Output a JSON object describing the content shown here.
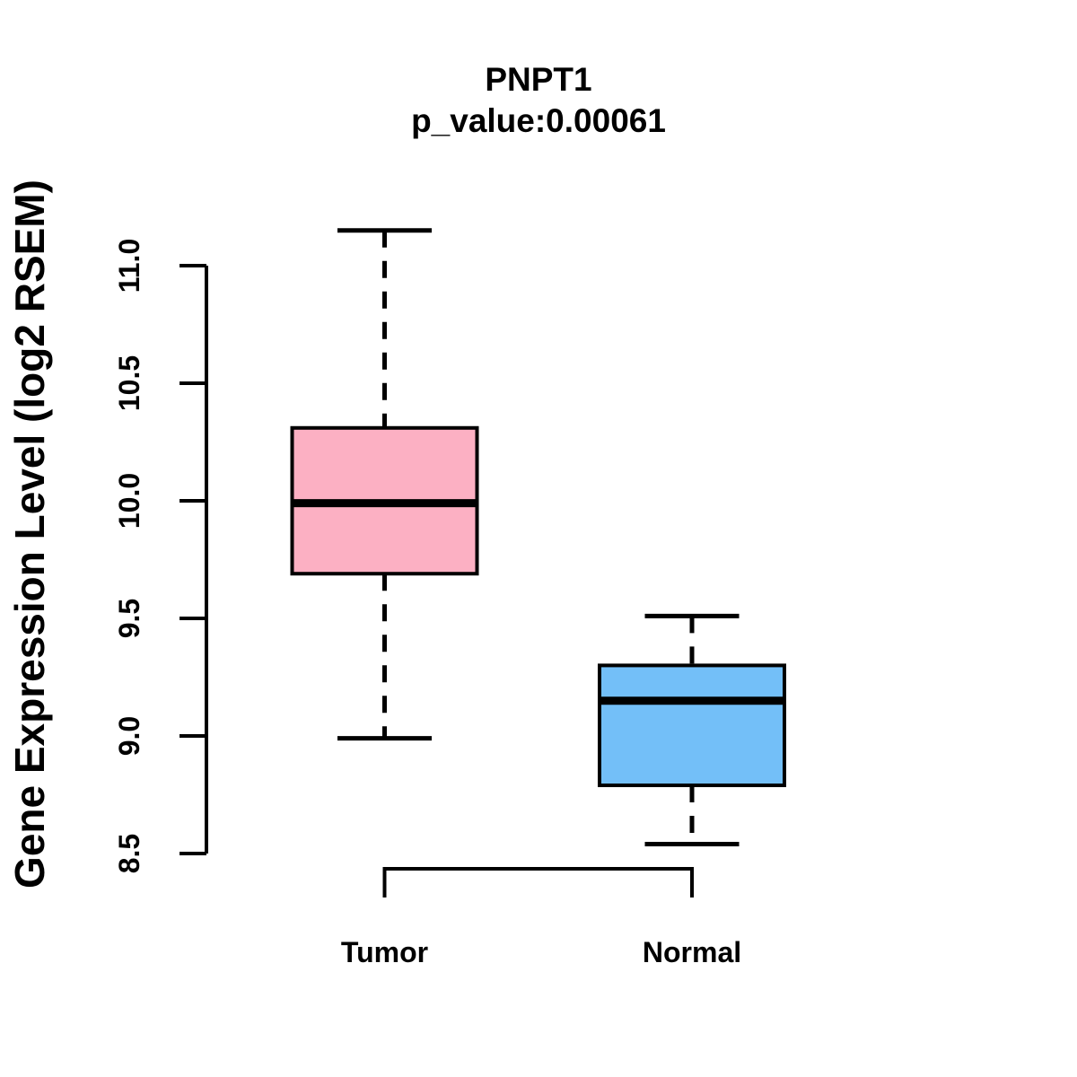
{
  "figure": {
    "title": "PNPT1",
    "subtitle": "p_value:0.00061",
    "ylabel": "Gene Expression Level (log2 RSEM)"
  },
  "chart_data": {
    "type": "boxplot",
    "title": "PNPT1",
    "subtitle": "p_value:0.00061",
    "p_value": 0.00061,
    "gene": "PNPT1",
    "xlabel": "",
    "ylabel": "Gene Expression Level (log2 RSEM)",
    "categories": [
      "Tumor",
      "Normal"
    ],
    "yticks": [
      8.5,
      9.0,
      9.5,
      10.0,
      10.5,
      11.0
    ],
    "ytick_labels": [
      "8.5",
      "9.0",
      "9.5",
      "10.0",
      "10.5",
      "11.0"
    ],
    "ylim": [
      8.5,
      11.0
    ],
    "grid": false,
    "legend": false,
    "series": [
      {
        "name": "Tumor",
        "color": "#FCB0C3",
        "whisker_low": 8.99,
        "q1": 9.69,
        "median": 9.99,
        "q3": 10.31,
        "whisker_high": 11.15
      },
      {
        "name": "Normal",
        "color": "#73BFF8",
        "whisker_low": 8.54,
        "q1": 8.79,
        "median": 9.15,
        "q3": 9.3,
        "whisker_high": 9.51
      }
    ],
    "colors": {
      "box_border": "#000000",
      "median_line": "#000000",
      "axis": "#000000",
      "text": "#000000",
      "background": "#FFFFFF"
    }
  }
}
